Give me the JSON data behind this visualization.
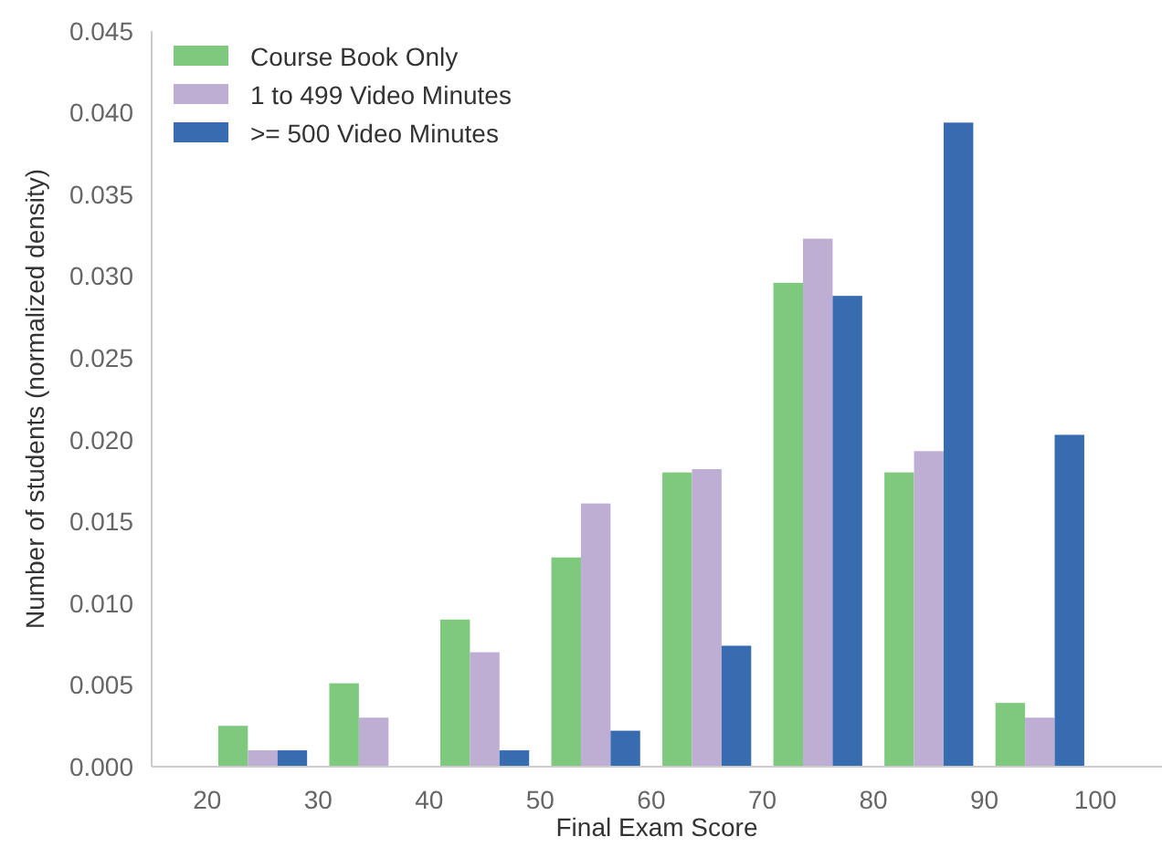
{
  "chart_data": {
    "type": "histogram",
    "xlabel": "Final Exam Score",
    "ylabel": "Number of students (normalized density)",
    "bins": [
      20,
      30,
      40,
      50,
      60,
      70,
      80,
      90,
      100
    ],
    "series": [
      {
        "name": "Course Book Only",
        "color": "#7fc97f",
        "values": [
          0.0025,
          0.0051,
          0.009,
          0.0128,
          0.018,
          0.0296,
          0.018,
          0.0039
        ]
      },
      {
        "name": "1 to 499 Video Minutes",
        "color": "#beaed4",
        "values": [
          0.001,
          0.003,
          0.007,
          0.0161,
          0.0182,
          0.0323,
          0.0193,
          0.003
        ]
      },
      {
        "name": ">= 500 Video Minutes",
        "color": "#386cb0",
        "values": [
          0.001,
          0,
          0.001,
          0.0022,
          0.0074,
          0.0288,
          0.0394,
          0.0203
        ]
      }
    ],
    "xlim": [
      15,
      106
    ],
    "xticks": [
      20,
      30,
      40,
      50,
      60,
      70,
      80,
      90,
      100
    ],
    "ylim": [
      0,
      0.045
    ],
    "yticks": [
      {
        "value": 0,
        "label": "0.000"
      },
      {
        "value": 0.005,
        "label": "0.005"
      },
      {
        "value": 0.01,
        "label": "0.010"
      },
      {
        "value": 0.015,
        "label": "0.015"
      },
      {
        "value": 0.02,
        "label": "0.020"
      },
      {
        "value": 0.025,
        "label": "0.025"
      },
      {
        "value": 0.03,
        "label": "0.030"
      },
      {
        "value": 0.035,
        "label": "0.035"
      },
      {
        "value": 0.04,
        "label": "0.040"
      },
      {
        "value": 0.045,
        "label": "0.045"
      }
    ],
    "grid": false,
    "legend": "top left"
  }
}
